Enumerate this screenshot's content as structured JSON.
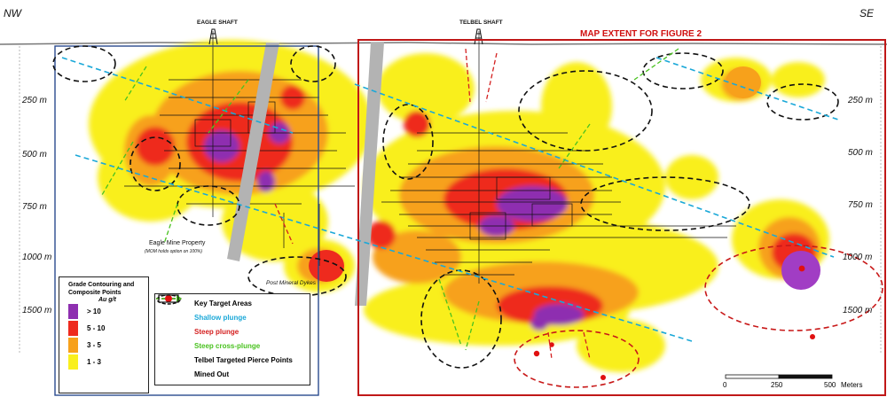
{
  "orientation": {
    "left": "NW",
    "right": "SE"
  },
  "shafts": [
    {
      "label": "EAGLE SHAFT"
    },
    {
      "label": "TELBEL SHAFT"
    }
  ],
  "map_extent_label": "MAP EXTENT FOR FIGURE 2",
  "depth_labels_left": [
    "250 m",
    "500 m",
    "750 m",
    "1000 m",
    "1500 m"
  ],
  "depth_labels_right": [
    "250 m",
    "500 m",
    "750 m",
    "1000 m",
    "1500 m"
  ],
  "property_label": "Eagle Mine Property",
  "property_note": "(MOM holds option on 100%)",
  "dykes_label": "Post Mineral Dykes",
  "grade_legend": {
    "title_lines": [
      "Grade Contouring and",
      "Composite Points"
    ],
    "unit": "Au g/t",
    "classes": [
      {
        "label": "> 10",
        "color": "#8e2fb0"
      },
      {
        "label": "5 - 10",
        "color": "#ee2a1e"
      },
      {
        "label": "3 - 5",
        "color": "#f7a11b"
      },
      {
        "label": "1 - 3",
        "color": "#f9ef1e"
      }
    ]
  },
  "symbol_legend": [
    {
      "label": "Key Target Areas",
      "color": "#111111",
      "icon": "dashed-ellipse-icon"
    },
    {
      "label": "Shallow plunge",
      "color": "#1aa8d8",
      "icon": "dashed-arrow-icon"
    },
    {
      "label": "Steep plunge",
      "color": "#d42020",
      "icon": "dashed-arrow-icon"
    },
    {
      "label": "Steep cross-plunge",
      "color": "#49c21f",
      "icon": "dashed-arrow-icon"
    },
    {
      "label": "Telbel Targeted Pierce Points",
      "color": "#e01010",
      "icon": "red-dot-icon"
    },
    {
      "label": "Mined Out",
      "color": "#111111",
      "icon": "rectangle-icon"
    }
  ],
  "scale_bar": {
    "ticks": [
      "0",
      "250",
      "500"
    ],
    "unit": "Meters"
  }
}
